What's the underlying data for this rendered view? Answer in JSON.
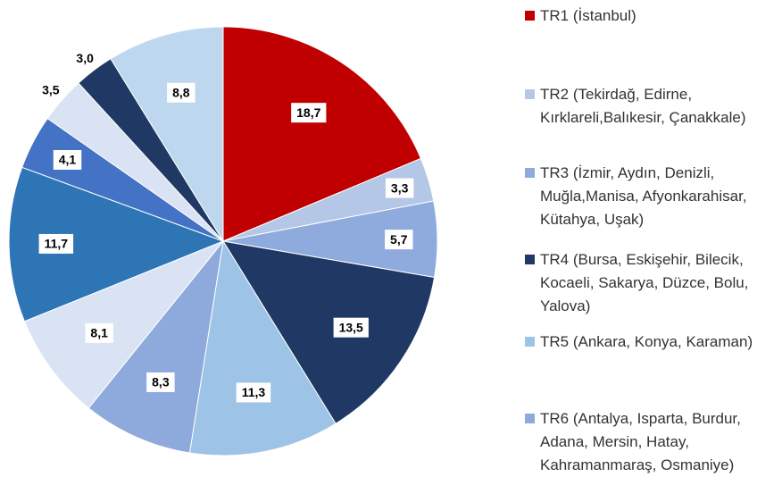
{
  "chart_data": {
    "type": "pie",
    "categories": [
      "TR1 (İstanbul)",
      "TR2 (Tekirdağ, Edirne, Kırklareli,Balıkesir, Çanakkale)",
      "TR3 (İzmir, Aydın, Denizli, Muğla,Manisa, Afyonkarahisar, Kütahya, Uşak)",
      "TR4 (Bursa, Eskişehir, Bilecik, Kocaeli, Sakarya, Düzce, Bolu, Yalova)",
      "TR5 (Ankara, Konya, Karaman)",
      "TR6 (Antalya, Isparta, Burdur, Adana, Mersin, Hatay, Kahramanmaraş, Osmaniye)",
      null,
      null,
      null,
      null,
      null,
      null
    ],
    "values": [
      18.7,
      3.3,
      5.7,
      13.5,
      11.3,
      8.3,
      8.1,
      11.7,
      4.1,
      3.5,
      3.0,
      8.8
    ],
    "value_labels": [
      "18,7",
      "3,3",
      "5,7",
      "13,5",
      "11,3",
      "8,3",
      "8,1",
      "11,7",
      "4,1",
      "3,5",
      "3,0",
      "8,8"
    ],
    "colors": [
      "#c00000",
      "#b4c7e7",
      "#8faadc",
      "#1f3864",
      "#9dc3e6",
      "#8ea9db",
      "#dae3f3",
      "#2e75b6",
      "#4472c4",
      "#dae3f3",
      "#1f3864",
      "#bdd7ee"
    ]
  }
}
